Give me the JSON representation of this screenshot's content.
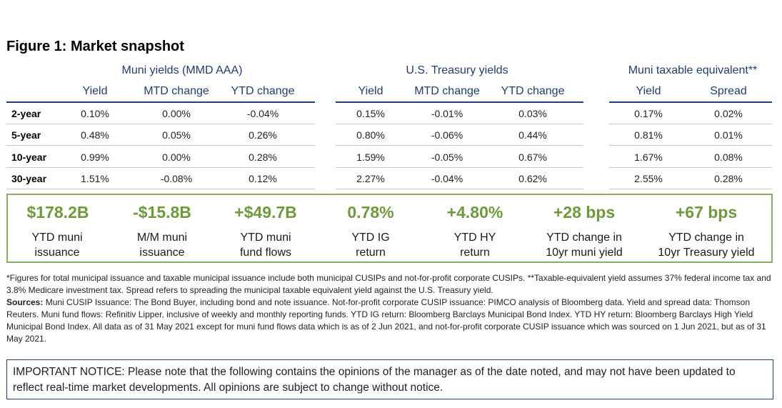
{
  "title": "Figure 1: Market snapshot",
  "groups": {
    "muni": "Muni yields (MMD AAA)",
    "treasury": "U.S. Treasury yields",
    "taxable": "Muni taxable equivalent**"
  },
  "columns": {
    "muni": [
      "Yield",
      "MTD change",
      "YTD change"
    ],
    "treasury": [
      "Yield",
      "MTD change",
      "YTD change"
    ],
    "taxable": [
      "Yield",
      "Spread"
    ]
  },
  "rows": [
    {
      "label": "2-year",
      "muni": [
        "0.10%",
        "0.00%",
        "-0.04%"
      ],
      "treasury": [
        "0.15%",
        "-0.01%",
        "0.03%"
      ],
      "taxable": [
        "0.17%",
        "0.02%"
      ]
    },
    {
      "label": "5-year",
      "muni": [
        "0.48%",
        "0.05%",
        "0.26%"
      ],
      "treasury": [
        "0.80%",
        "-0.06%",
        "0.44%"
      ],
      "taxable": [
        "0.81%",
        "0.01%"
      ]
    },
    {
      "label": "10-year",
      "muni": [
        "0.99%",
        "0.00%",
        "0.28%"
      ],
      "treasury": [
        "1.59%",
        "-0.05%",
        "0.67%"
      ],
      "taxable": [
        "1.67%",
        "0.08%"
      ]
    },
    {
      "label": "30-year",
      "muni": [
        "1.51%",
        "-0.08%",
        "0.12%"
      ],
      "treasury": [
        "2.27%",
        "-0.04%",
        "0.62%"
      ],
      "taxable": [
        "2.55%",
        "0.28%"
      ]
    }
  ],
  "kpis": [
    {
      "value": "$178.2B",
      "line1": "YTD muni",
      "line2": "issuance"
    },
    {
      "value": "-$15.8B",
      "line1": "M/M muni",
      "line2": "issuance"
    },
    {
      "value": "+$49.7B",
      "line1": "YTD muni",
      "line2": "fund flows"
    },
    {
      "value": "0.78%",
      "line1": "YTD IG",
      "line2": "return"
    },
    {
      "value": "+4.80%",
      "line1": "YTD HY",
      "line2": "return"
    },
    {
      "value": "+28 bps",
      "line1": "YTD change in",
      "line2": "10yr muni yield"
    },
    {
      "value": "+67 bps",
      "line1": "YTD change in",
      "line2": "10yr Treasury yield"
    }
  ],
  "footnotes": {
    "note": "*Figures for total municipal issuance and taxable municipal issuance include both municipal CUSIPs and not-for-profit corporate CUSIPs. **Taxable-equivalent yield assumes 37% federal income tax and 3.8% Medicare investment tax. Spread refers to spreading the municipal taxable equivalent yield against the U.S. Treasury yield.",
    "sources_label": "Sources:",
    "sources_text": " Muni CUSIP Issuance: The Bond Buyer, including bond and note issuance. Not-for-profit corporate CUSIP issuance: PIMCO analysis of Bloomberg data. Yield and spread data: Thomson Reuters. Muni fund flows: Refinitiv Lipper, inclusive of weekly and monthly reporting funds. YTD IG return: Bloomberg Barclays Municipal Bond Index. YTD HY return: Bloomberg Barclays High Yield Municipal Bond Index. All data as of 31 May 2021 except for muni fund flows data which is as of 2 Jun 2021, and not-for-profit corporate CUSIP issuance which was sourced on 1 Jun 2021, but as of 31 May 2021."
  },
  "notice": "IMPORTANT NOTICE: Please note that the following contains the opinions of the manager as of the date noted, and may not have been updated to reflect real-time market developments. All opinions are subject to change without notice."
}
